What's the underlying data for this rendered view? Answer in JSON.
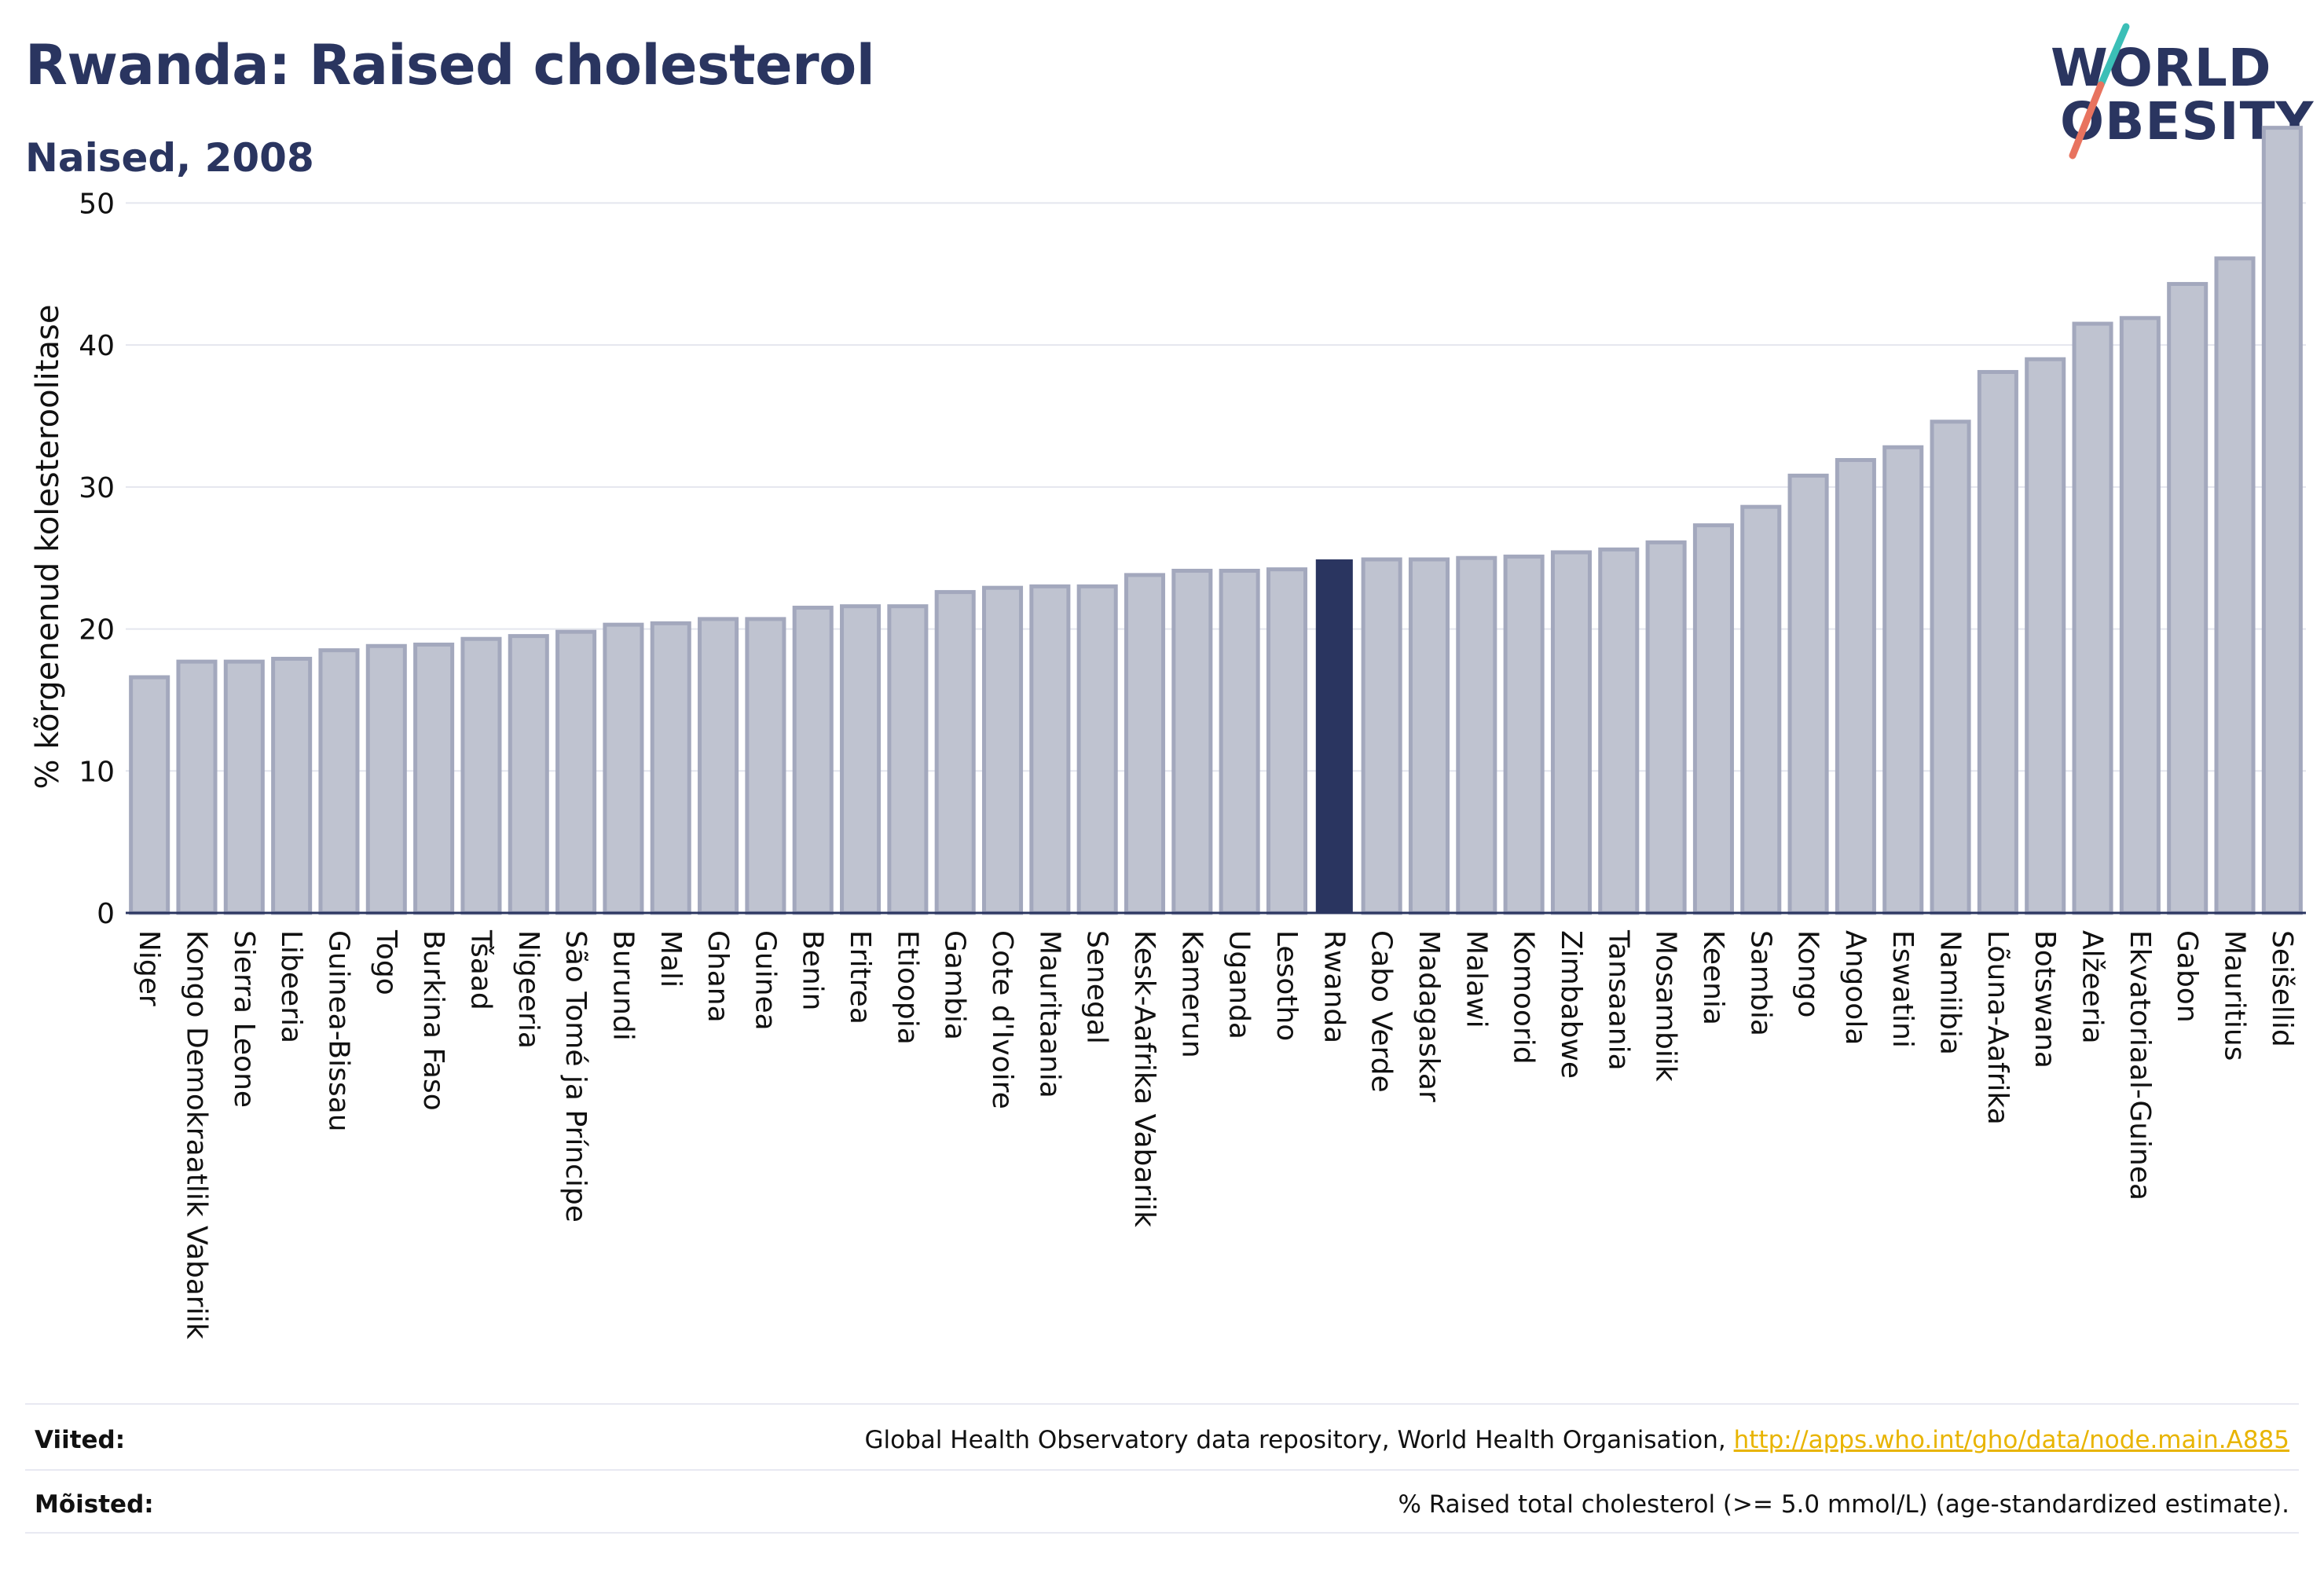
{
  "header": {
    "title": "Rwanda: Raised cholesterol",
    "subtitle": "Naised, 2008"
  },
  "logo": {
    "line1": "WORLD",
    "line2": "OBESITY",
    "accent_teal": "#3bbfb7",
    "accent_coral": "#e8735f"
  },
  "colors": {
    "bar_default": "#bfc3d0",
    "bar_default_stroke": "#a3a8bd",
    "bar_highlight": "#2a3560",
    "axis": "#2a3560",
    "grid": "#e4e6ee"
  },
  "footer": {
    "sources_label": "Viited:",
    "sources_text": "Global Health Observatory data repository, World Health Organisation, ",
    "sources_link": "http://apps.who.int/gho/data/node.main.A885",
    "definitions_label": "Mõisted:",
    "definitions_text": "% Raised total cholesterol (>= 5.0 mmol/L) (age-standardized estimate)."
  },
  "chart_data": {
    "type": "bar",
    "ylabel": "% kõrgenenud kolesteroolitase",
    "xlabel": "",
    "ylim": [
      0,
      56
    ],
    "yticks": [
      0,
      10,
      20,
      30,
      40,
      50
    ],
    "grid": true,
    "highlight": "Rwanda",
    "categories": [
      "Niger",
      "Kongo Demokraatlik Vabariik",
      "Sierra Leone",
      "Libeeria",
      "Guinea-Bissau",
      "Togo",
      "Burkina Faso",
      "Tšaad",
      "Nigeeria",
      "São Tomé ja Príncipe",
      "Burundi",
      "Mali",
      "Ghana",
      "Guinea",
      "Benin",
      "Eritrea",
      "Etioopia",
      "Gambia",
      "Cote d'Ivoire",
      "Mauritaania",
      "Senegal",
      "Kesk-Aafrika Vabariik",
      "Kamerun",
      "Uganda",
      "Lesotho",
      "Rwanda",
      "Cabo Verde",
      "Madagaskar",
      "Malawi",
      "Komoorid",
      "Zimbabwe",
      "Tansaania",
      "Mosambiik",
      "Keenia",
      "Sambia",
      "Kongo",
      "Angoola",
      "Eswatini",
      "Namiibia",
      "Lõuna-Aafrika",
      "Botswana",
      "Alžeeria",
      "Ekvatoriaal-Guinea",
      "Gabon",
      "Mauritius",
      "Seišellid"
    ],
    "values": [
      16.6,
      17.7,
      17.7,
      17.9,
      18.5,
      18.8,
      18.9,
      19.3,
      19.5,
      19.8,
      20.3,
      20.4,
      20.7,
      20.7,
      21.5,
      21.6,
      21.6,
      22.6,
      22.9,
      23.0,
      23.0,
      23.8,
      24.1,
      24.1,
      24.2,
      24.9,
      24.9,
      24.9,
      25.0,
      25.1,
      25.4,
      25.6,
      26.1,
      27.3,
      28.6,
      30.8,
      31.9,
      32.8,
      34.6,
      38.1,
      39.0,
      41.5,
      41.9,
      44.3,
      46.1,
      55.3
    ]
  }
}
